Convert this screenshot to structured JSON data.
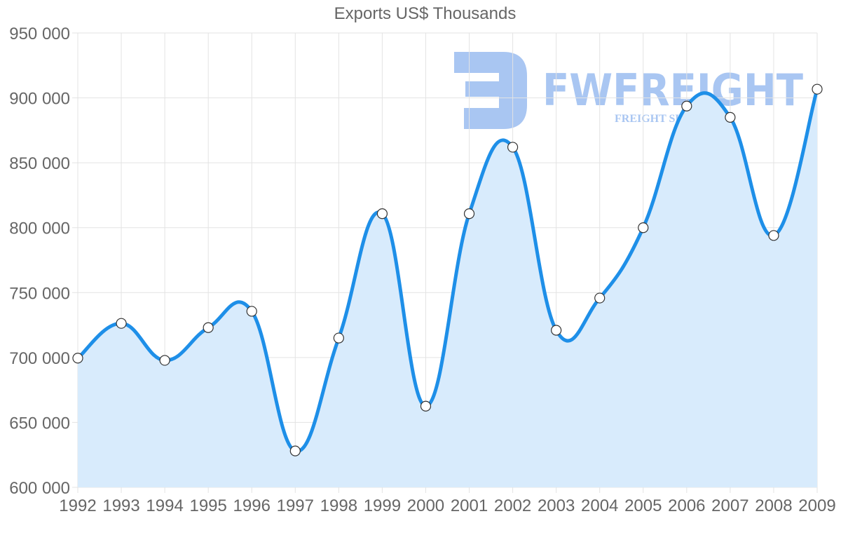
{
  "chart_data": {
    "type": "area",
    "title": "Exports US$ Thousands",
    "xlabel": "",
    "ylabel": "",
    "categories": [
      "1992",
      "1993",
      "1994",
      "1995",
      "1996",
      "1997",
      "1998",
      "1999",
      "2000",
      "2001",
      "2002",
      "2003",
      "2004",
      "2005",
      "2006",
      "2007",
      "2008",
      "2009"
    ],
    "series": [
      {
        "name": "Exports US$ Thousands",
        "values": [
          699500,
          726300,
          697800,
          723000,
          735600,
          628000,
          715000,
          810800,
          662500,
          810800,
          862000,
          721000,
          745800,
          800000,
          893700,
          885000,
          794000,
          906700
        ],
        "line_color": "#1e8fe8",
        "fill_color": "#d8ebfc"
      }
    ],
    "ylim": [
      600000,
      950000
    ],
    "yticks": [
      600000,
      650000,
      700000,
      750000,
      800000,
      850000,
      900000,
      950000
    ],
    "ytick_labels": [
      "600 000",
      "650 000",
      "700 000",
      "750 000",
      "800 000",
      "850 000",
      "900 000",
      "950 000"
    ],
    "grid": true,
    "legend": "none"
  },
  "watermark": {
    "brand": "FWFREIGHT",
    "tagline": "FREIGHT SHIPPING",
    "color": "#a9c6f2"
  },
  "colors": {
    "grid": "#e3e3e3",
    "axis_text": "#666666",
    "point_fill": "#ffffff",
    "point_stroke": "#333333"
  }
}
